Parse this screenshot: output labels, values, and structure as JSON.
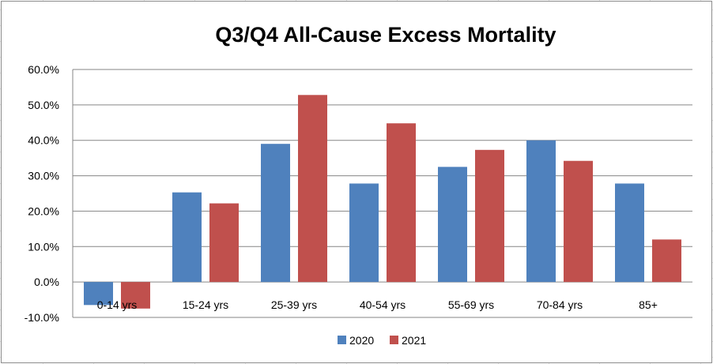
{
  "chart_data": {
    "type": "bar",
    "title": "Q3/Q4 All-Cause Excess Mortality",
    "categories": [
      "0-14 yrs",
      "15-24 yrs",
      "25-39 yrs",
      "40-54 yrs",
      "55-69 yrs",
      "70-84 yrs",
      "85+"
    ],
    "series": [
      {
        "name": "2020",
        "color": "#4f81bd",
        "values": [
          -6.5,
          25.3,
          39.0,
          27.8,
          32.5,
          40.0,
          27.8
        ]
      },
      {
        "name": "2021",
        "color": "#c0504d",
        "values": [
          -7.5,
          22.2,
          52.8,
          44.8,
          37.3,
          34.2,
          12.0
        ]
      }
    ],
    "ylim": [
      -10,
      60
    ],
    "y_ticks": [
      "-10.0%",
      "0.0%",
      "10.0%",
      "20.0%",
      "30.0%",
      "40.0%",
      "50.0%",
      "60.0%"
    ],
    "y_tick_values": [
      -10,
      0,
      10,
      20,
      30,
      40,
      50,
      60
    ],
    "xlabel": "",
    "ylabel": "",
    "grid": true,
    "legend_position": "bottom"
  }
}
